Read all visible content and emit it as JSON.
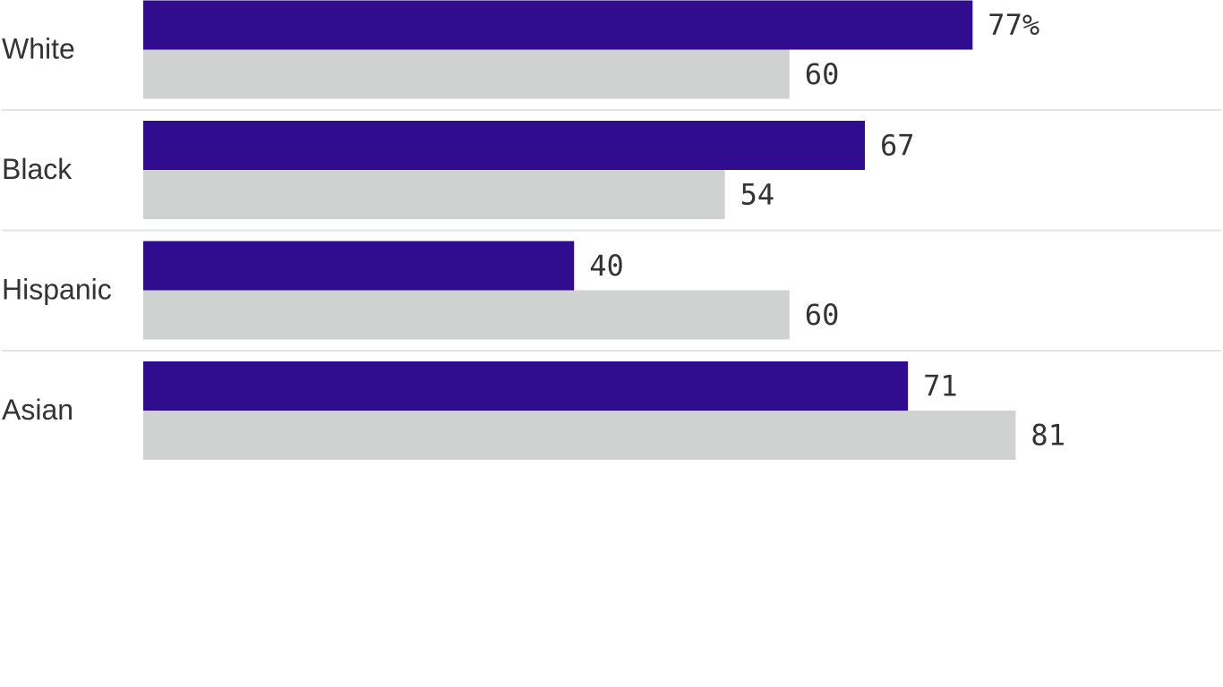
{
  "chart_data": {
    "type": "bar",
    "orientation": "horizontal",
    "categories": [
      "White",
      "Black",
      "Hispanic",
      "Asian"
    ],
    "series": [
      {
        "values": [
          77,
          67,
          40,
          71
        ],
        "color": "#300d8f"
      },
      {
        "values": [
          60,
          54,
          60,
          81
        ],
        "color": "#d0d1d1"
      }
    ],
    "value_labels": [
      [
        "77%",
        "67",
        "40",
        "71"
      ],
      [
        "60",
        "54",
        "60",
        "81"
      ]
    ],
    "xlim": [
      0,
      100
    ],
    "grid": false,
    "separator_color": "#e3e3e3",
    "title": "",
    "xlabel": "",
    "ylabel": ""
  }
}
